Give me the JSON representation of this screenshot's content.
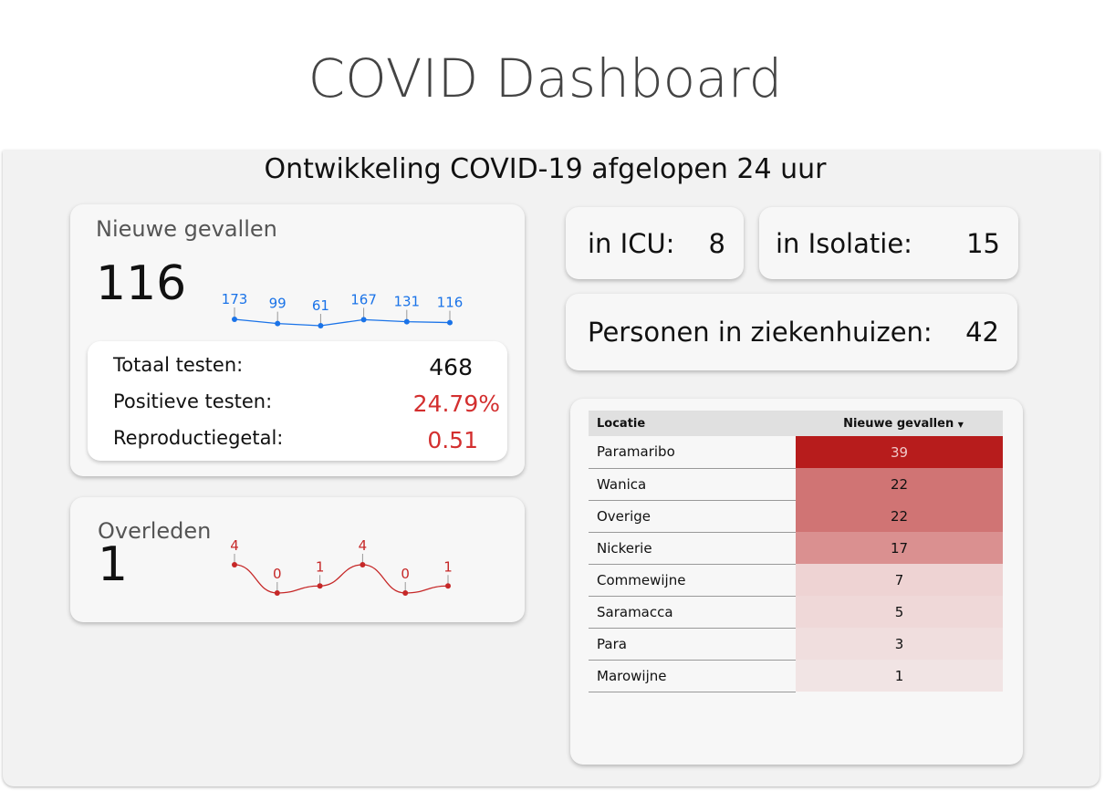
{
  "header": {
    "title": "COVID Dashboard"
  },
  "subtitle": "Ontwikkeling COVID-19 afgelopen 24 uur",
  "new_cases": {
    "label": "Nieuwe gevallen",
    "value": "116",
    "trend": [
      173,
      99,
      61,
      167,
      131,
      116
    ],
    "stats": [
      {
        "label": "Totaal testen:",
        "value": "468"
      },
      {
        "label": "Positieve testen:",
        "value": "24.79%"
      },
      {
        "label": "Reproductiegetal:",
        "value": "0.51"
      }
    ]
  },
  "deaths": {
    "label": "Overleden",
    "value": "1",
    "trend": [
      4,
      0,
      1,
      4,
      0,
      1
    ]
  },
  "icu": {
    "label": "in ICU:",
    "value": "8"
  },
  "isolation": {
    "label": "in Isolatie:",
    "value": "15"
  },
  "hospital": {
    "label": "Personen in ziekenhuizen:",
    "value": "42"
  },
  "table": {
    "headers": [
      "Locatie",
      "Nieuwe gevallen"
    ],
    "rows": [
      {
        "loc": "Paramaribo",
        "n": "39",
        "color": "#b71c1c"
      },
      {
        "loc": "Wanica",
        "n": "22",
        "color": "#d07474"
      },
      {
        "loc": "Overige",
        "n": "22",
        "color": "#d07474"
      },
      {
        "loc": "Nickerie",
        "n": "17",
        "color": "#da9090"
      },
      {
        "loc": "Commewijne",
        "n": "7",
        "color": "#eed3d3"
      },
      {
        "loc": "Saramacca",
        "n": "5",
        "color": "#efd8d8"
      },
      {
        "loc": "Para",
        "n": "3",
        "color": "#f0dede"
      },
      {
        "loc": "Marowijne",
        "n": "1",
        "color": "#f1e4e4"
      }
    ]
  },
  "colors": {
    "blue": "#1a73e8",
    "red": "#c62828",
    "accent_red": "#d32f2f"
  }
}
